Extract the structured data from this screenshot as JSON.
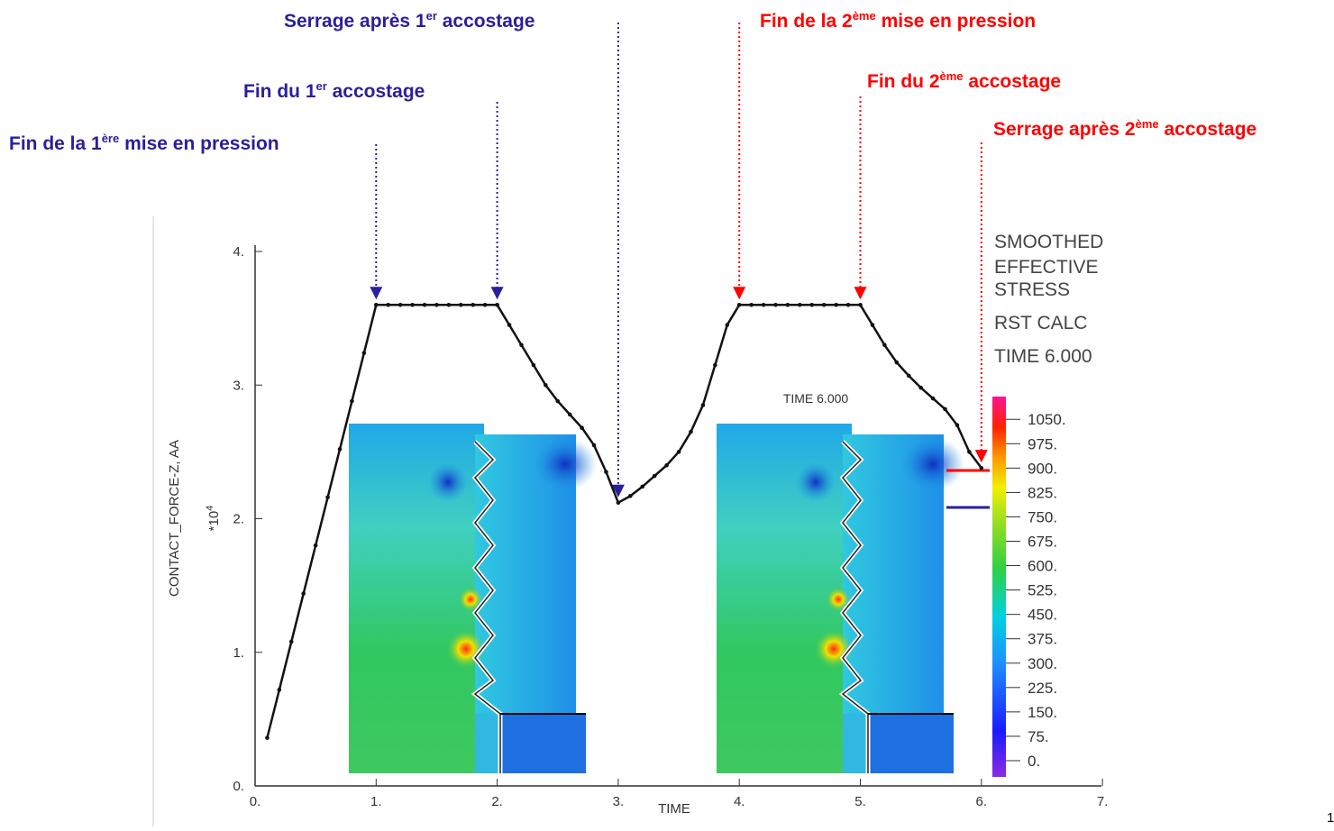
{
  "chart_data": {
    "type": "line",
    "x": [
      0.1,
      0.2,
      0.3,
      0.4,
      0.5,
      0.6,
      0.7,
      0.8,
      0.9,
      1.0,
      1.1,
      1.2,
      1.3,
      1.4,
      1.5,
      1.6,
      1.7,
      1.8,
      1.9,
      2.0,
      2.1,
      2.2,
      2.3,
      2.4,
      2.5,
      2.6,
      2.7,
      2.8,
      2.9,
      3.0,
      3.1,
      3.2,
      3.3,
      3.4,
      3.5,
      3.6,
      3.7,
      3.8,
      3.9,
      4.0,
      4.1,
      4.2,
      4.3,
      4.4,
      4.5,
      4.6,
      4.7,
      4.8,
      4.9,
      5.0,
      5.1,
      5.2,
      5.3,
      5.4,
      5.5,
      5.6,
      5.7,
      5.8,
      5.9,
      6.0
    ],
    "values": [
      0.36,
      0.72,
      1.08,
      1.44,
      1.8,
      2.16,
      2.52,
      2.88,
      3.24,
      3.6,
      3.6,
      3.6,
      3.6,
      3.6,
      3.6,
      3.6,
      3.6,
      3.6,
      3.6,
      3.6,
      3.45,
      3.3,
      3.15,
      3.0,
      2.88,
      2.78,
      2.68,
      2.55,
      2.35,
      2.12,
      2.17,
      2.24,
      2.32,
      2.4,
      2.5,
      2.65,
      2.85,
      3.15,
      3.45,
      3.6,
      3.6,
      3.6,
      3.6,
      3.6,
      3.6,
      3.6,
      3.6,
      3.6,
      3.6,
      3.6,
      3.45,
      3.3,
      3.17,
      3.07,
      2.98,
      2.9,
      2.82,
      2.7,
      2.5,
      2.38
    ],
    "color": "#111111",
    "xlim": [
      0,
      7
    ],
    "ylim": [
      0,
      4.05
    ],
    "xticks": [
      {
        "value": 0,
        "label": "0."
      },
      {
        "value": 1,
        "label": "1."
      },
      {
        "value": 2,
        "label": "2."
      },
      {
        "value": 3,
        "label": "3."
      },
      {
        "value": 4,
        "label": "4."
      },
      {
        "value": 5,
        "label": "5."
      },
      {
        "value": 6,
        "label": "6."
      },
      {
        "value": 7,
        "label": "7."
      }
    ],
    "yticks": [
      {
        "value": 0,
        "label": "0."
      },
      {
        "value": 1,
        "label": "1."
      },
      {
        "value": 2,
        "label": "2."
      },
      {
        "value": 3,
        "label": "3."
      },
      {
        "value": 4,
        "label": "4."
      }
    ],
    "x_label": "TIME",
    "y_label": "CONTACT_FORCE-Z, AA",
    "y_multiplier": {
      "base": "*10",
      "exp": "4"
    },
    "legend_text": [
      "SMOOTHED",
      "EFFECTIVE",
      "STRESS",
      "RST CALC",
      "TIME 6.000"
    ],
    "inset_title": "TIME 6.000",
    "colorbar": {
      "clim": [
        -50,
        1120
      ],
      "ticks": [
        {
          "value": 1050,
          "label": "1050."
        },
        {
          "value": 975,
          "label": "975."
        },
        {
          "value": 900,
          "label": "900."
        },
        {
          "value": 825,
          "label": "825."
        },
        {
          "value": 750,
          "label": "750."
        },
        {
          "value": 675,
          "label": "675."
        },
        {
          "value": 600,
          "label": "600."
        },
        {
          "value": 525,
          "label": "525."
        },
        {
          "value": 450,
          "label": "450."
        },
        {
          "value": 375,
          "label": "375."
        },
        {
          "value": 300,
          "label": "300."
        },
        {
          "value": 225,
          "label": "225."
        },
        {
          "value": 150,
          "label": "150."
        },
        {
          "value": 75,
          "label": "75."
        },
        {
          "value": 0,
          "label": "0."
        }
      ]
    },
    "annotations": [
      {
        "before": "Fin de la 1",
        "sup": "ère",
        "after": " mise en pression",
        "x": 1.0,
        "color": "#2a1f9a"
      },
      {
        "before": "Fin du 1",
        "sup": "er",
        "after": " accostage",
        "x": 2.0,
        "color": "#2a1f9a"
      },
      {
        "before": "Serrage après 1",
        "sup": "er",
        "after": " accostage",
        "x": 3.0,
        "color": "#2a1f9a"
      },
      {
        "before": "Fin de la 2",
        "sup": "ème",
        "after": " mise en pression",
        "x": 4.0,
        "color": "#ff0000"
      },
      {
        "before": "Fin du 2",
        "sup": "ème",
        "after": " accostage",
        "x": 5.0,
        "color": "#ff0000"
      },
      {
        "before": "Serrage après 2",
        "sup": "ème",
        "after": " accostage",
        "x": 6.0,
        "color": "#ff0000"
      }
    ]
  },
  "page_number": "1"
}
